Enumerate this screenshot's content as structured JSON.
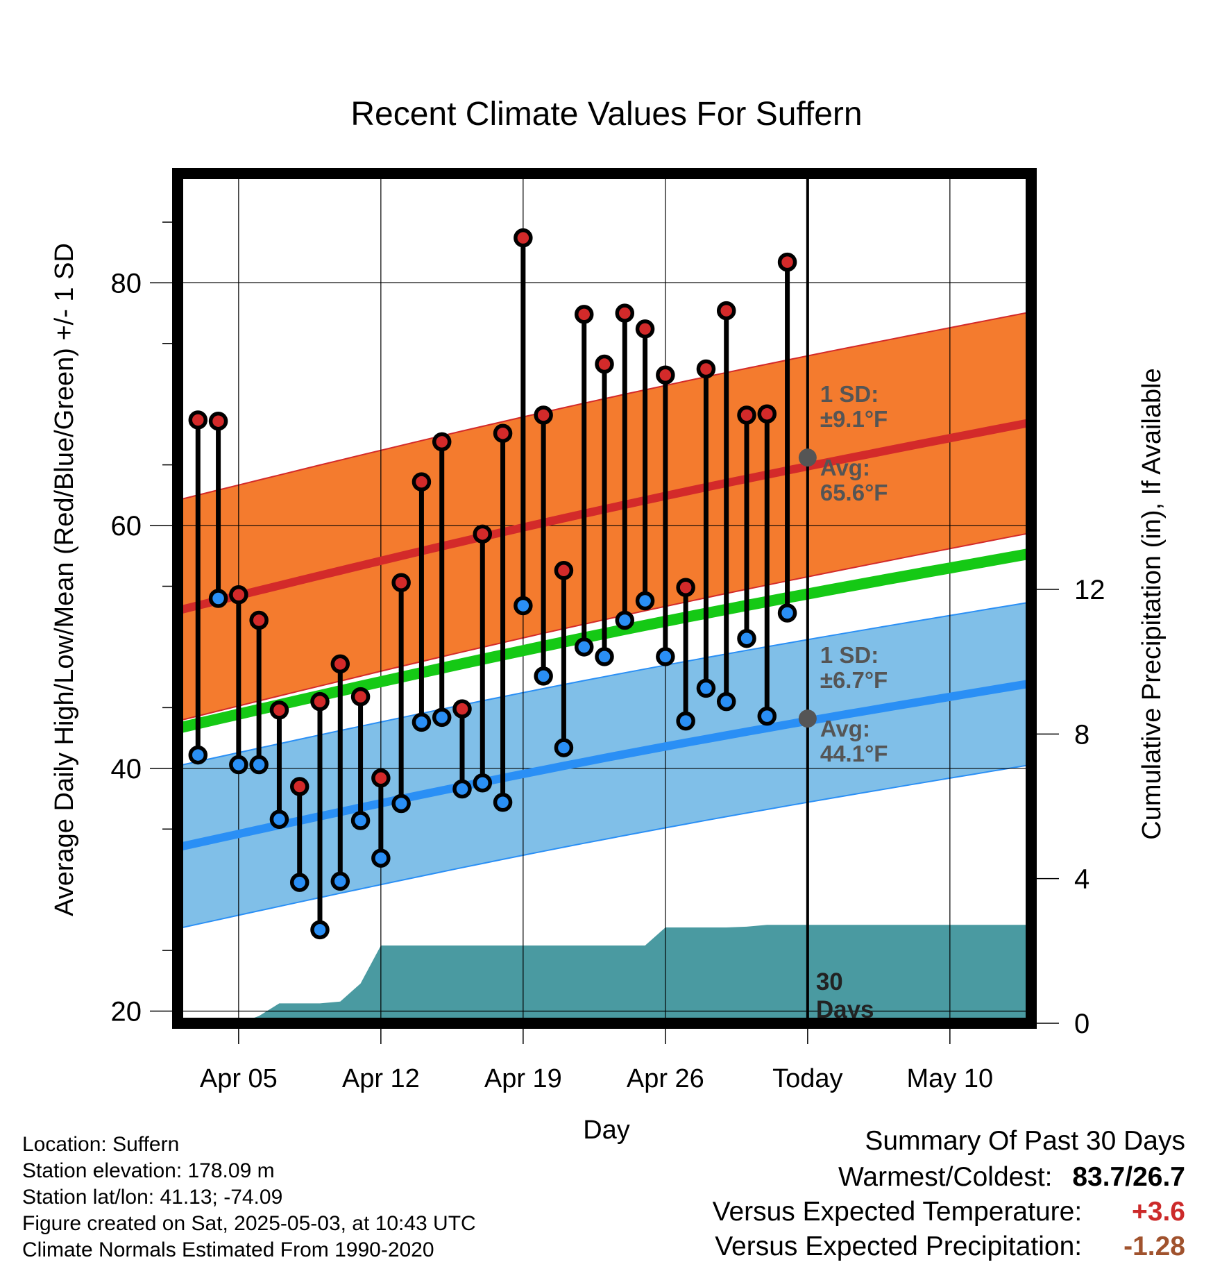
{
  "chart_data": {
    "type": "line",
    "title": "Recent Climate Values For Suffern",
    "xlabel": "Day",
    "ylabel": "Average Daily High/Low/Mean (Red/Blue/Green) +/- 1 SD",
    "y2label": "Cumulative Precipitation (in), If Available",
    "ylim": [
      19,
      89
    ],
    "y2lim": [
      0,
      23.5
    ],
    "x_range_days": [
      0,
      42
    ],
    "yticks": [
      20,
      40,
      60,
      80
    ],
    "y2ticks": [
      0,
      4,
      8,
      12
    ],
    "xticks": [
      {
        "day": 3,
        "label": "Apr 05"
      },
      {
        "day": 10,
        "label": "Apr 12"
      },
      {
        "day": 17,
        "label": "Apr 19"
      },
      {
        "day": 24,
        "label": "Apr 26"
      },
      {
        "day": 31,
        "label": "Today"
      },
      {
        "day": 38,
        "label": "May 10"
      }
    ],
    "grid": true,
    "today_day": 31,
    "today_label": [
      "30",
      "Days"
    ],
    "normals": {
      "high": {
        "start": 53.0,
        "end": 68.5,
        "sd": 9.1,
        "color": "#d32a2a",
        "band_color": "#f47b2e"
      },
      "low": {
        "start": 33.5,
        "end": 47.0,
        "sd": 6.7,
        "color": "#2a8ff5",
        "band_color": "#80bfe8"
      },
      "mean": {
        "start": 43.3,
        "end": 57.7,
        "color": "#15c915"
      }
    },
    "annotations": {
      "high": {
        "line1": "1 SD:",
        "line2": "±9.1°F",
        "line3": "Avg:",
        "line4": "65.6°F",
        "value": 65.6
      },
      "low": {
        "line1": "1 SD:",
        "line2": "±6.7°F",
        "line3": "Avg:",
        "line4": "44.1°F",
        "value": 44.1
      }
    },
    "series": [
      {
        "name": "High",
        "color": "#d32a2a",
        "values": [
          68.7,
          68.6,
          54.3,
          52.2,
          44.8,
          38.5,
          45.5,
          48.6,
          45.9,
          39.2,
          55.3,
          63.6,
          66.9,
          44.9,
          59.3,
          67.6,
          83.7,
          69.1,
          56.3,
          77.4,
          73.3,
          77.5,
          76.2,
          72.4,
          54.9,
          72.9,
          77.7,
          69.1,
          69.2,
          81.7
        ]
      },
      {
        "name": "Low",
        "color": "#2a8ff5",
        "values": [
          41.1,
          54.0,
          40.3,
          40.3,
          35.8,
          30.6,
          26.7,
          30.7,
          35.7,
          32.6,
          37.1,
          43.8,
          44.2,
          38.3,
          38.8,
          37.2,
          53.4,
          47.6,
          41.7,
          50.0,
          49.2,
          52.2,
          53.8,
          49.2,
          43.9,
          46.6,
          45.5,
          50.7,
          44.3,
          52.8
        ]
      }
    ],
    "series_start_day": 1,
    "precipitation": {
      "name": "Cumulative Precipitation",
      "color": "#4a9aa1",
      "days": [
        0,
        1,
        2,
        3,
        4,
        5,
        6,
        7,
        8,
        9,
        10,
        11,
        12,
        13,
        14,
        15,
        16,
        17,
        18,
        19,
        20,
        21,
        22,
        23,
        24,
        25,
        26,
        27,
        28,
        29,
        30,
        31,
        42
      ],
      "values": [
        0,
        0,
        0,
        0,
        0.2,
        0.55,
        0.55,
        0.55,
        0.6,
        1.1,
        2.15,
        2.15,
        2.15,
        2.15,
        2.15,
        2.15,
        2.15,
        2.15,
        2.15,
        2.15,
        2.15,
        2.15,
        2.15,
        2.15,
        2.65,
        2.65,
        2.65,
        2.65,
        2.67,
        2.72,
        2.72,
        2.72,
        2.72
      ]
    }
  },
  "meta": {
    "location": "Location: Suffern",
    "elevation": "Station elevation: 178.09 m",
    "latlon": "Station lat/lon: 41.13; -74.09",
    "created": "Figure created on Sat, 2025-05-03, at 10:43 UTC",
    "normals": "Climate Normals Estimated From 1990-2020"
  },
  "summary": {
    "title": "Summary Of Past 30 Days",
    "warm_cold_label": "Warmest/Coldest:",
    "warm_cold_value": "83.7/26.7",
    "temp_label": "Versus Expected Temperature:",
    "temp_value": "+3.6",
    "temp_color": "#cc2a2a",
    "precip_label": "Versus Expected Precipitation:",
    "precip_value": "-1.28",
    "precip_color": "#a0522d"
  }
}
